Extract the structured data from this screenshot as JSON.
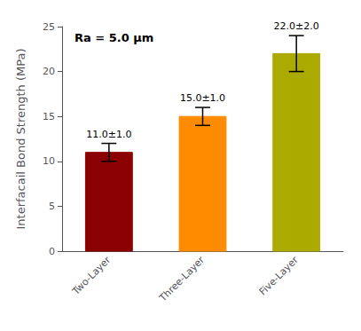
{
  "chart_data": {
    "type": "bar",
    "categories": [
      "Two-Layer",
      "Three-Layer",
      "Five-Layer"
    ],
    "values": [
      11.0,
      15.0,
      22.0
    ],
    "errors": [
      1.0,
      1.0,
      2.0
    ],
    "value_labels": [
      "11.0±1.0",
      "15.0±1.0",
      "22.0±2.0"
    ],
    "data_labels": true,
    "colors": [
      "#8B0000",
      "#FF8C00",
      "#AAAA00"
    ],
    "ylabel": "Interfacail Bond Strength (MPa)",
    "ylim": [
      0,
      25
    ],
    "yticks": [
      0,
      5,
      10,
      15,
      20,
      25
    ],
    "annotation": "Ra = 5.0 μm",
    "grid": false
  }
}
